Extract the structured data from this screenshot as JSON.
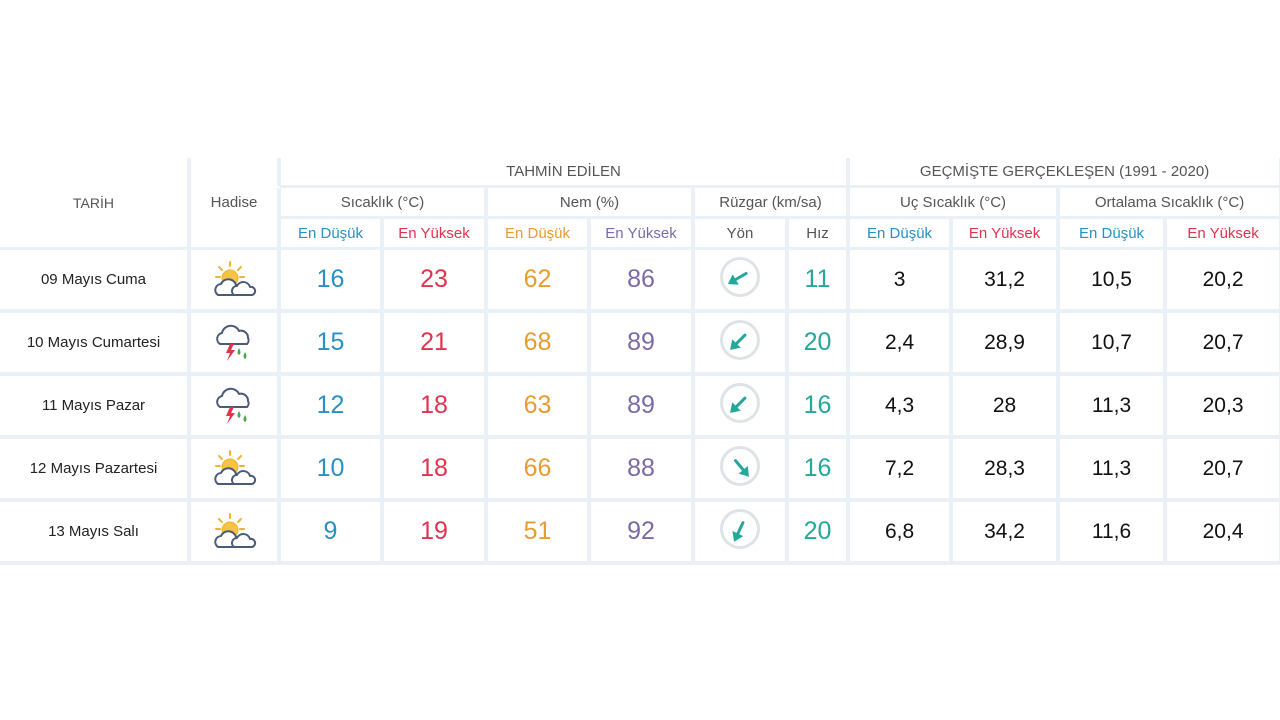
{
  "headers": {
    "date": "TARİH",
    "hadise": "Hadise",
    "forecast": "TAHMİN EDİLEN",
    "historical": "GEÇMİŞTE GERÇEKLEŞEN (1991 - 2020)",
    "temp": "Sıcaklık (°C)",
    "humidity": "Nem (%)",
    "wind": "Rüzgar (km/sa)",
    "extreme_temp": "Uç Sıcaklık (°C)",
    "avg_temp": "Ortalama Sıcaklık (°C)",
    "low": "En Düşük",
    "high": "En Yüksek",
    "direction": "Yön",
    "speed": "Hız"
  },
  "colors": {
    "low": "#2a8fc4",
    "high": "#e0334f",
    "humidity_low": "#e89b2e",
    "humidity_high": "#7a6aa8",
    "wind_speed": "#23a89a",
    "grid": "#e9f1f7"
  },
  "rows": [
    {
      "date": "09 Mayıs Cuma",
      "icon": "partly-cloudy-icon",
      "t_low": "16",
      "t_high": "23",
      "h_low": "62",
      "h_high": "86",
      "wind_dir_deg": 240,
      "wind_speed": "11",
      "ext_low": "3",
      "ext_high": "31,2",
      "avg_low": "10,5",
      "avg_high": "20,2"
    },
    {
      "date": "10 Mayıs Cumartesi",
      "icon": "thunderstorm-rain-icon",
      "t_low": "15",
      "t_high": "21",
      "h_low": "68",
      "h_high": "89",
      "wind_dir_deg": 225,
      "wind_speed": "20",
      "ext_low": "2,4",
      "ext_high": "28,9",
      "avg_low": "10,7",
      "avg_high": "20,7"
    },
    {
      "date": "11 Mayıs Pazar",
      "icon": "thunderstorm-rain-icon",
      "t_low": "12",
      "t_high": "18",
      "h_low": "63",
      "h_high": "89",
      "wind_dir_deg": 225,
      "wind_speed": "16",
      "ext_low": "4,3",
      "ext_high": "28",
      "avg_low": "11,3",
      "avg_high": "20,3"
    },
    {
      "date": "12 Mayıs Pazartesi",
      "icon": "partly-cloudy-icon",
      "t_low": "10",
      "t_high": "18",
      "h_low": "66",
      "h_high": "88",
      "wind_dir_deg": 140,
      "wind_speed": "16",
      "ext_low": "7,2",
      "ext_high": "28,3",
      "avg_low": "11,3",
      "avg_high": "20,7"
    },
    {
      "date": "13 Mayıs Salı",
      "icon": "partly-cloudy-icon",
      "t_low": "9",
      "t_high": "19",
      "h_low": "51",
      "h_high": "92",
      "wind_dir_deg": 205,
      "wind_speed": "20",
      "ext_low": "6,8",
      "ext_high": "34,2",
      "avg_low": "11,6",
      "avg_high": "20,4"
    }
  ]
}
